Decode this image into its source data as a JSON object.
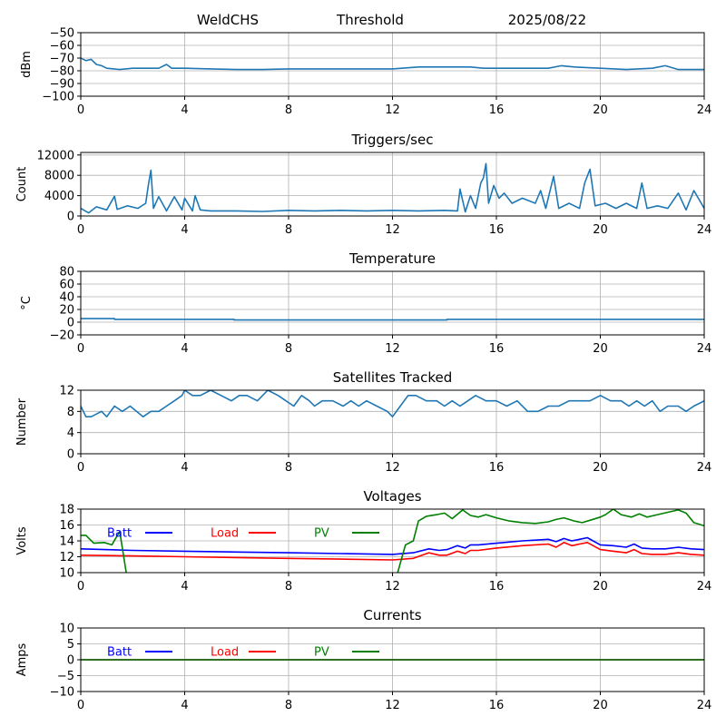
{
  "header": {
    "station": "WeldCHS",
    "mode": "Threshold",
    "date": "2025/08/22"
  },
  "colors": {
    "series": "#1f77b4",
    "batt": "#0000ff",
    "load": "#ff0000",
    "pv": "#008000",
    "grid": "#b0b0b0"
  },
  "legend_labels": {
    "batt": "Batt",
    "load": "Load",
    "pv": "PV"
  },
  "chart_data": [
    {
      "id": "dbm",
      "type": "line",
      "title": "",
      "ylabel": "dBm",
      "xlim": [
        0,
        24
      ],
      "ylim": [
        -100,
        -50
      ],
      "xticks": [
        0,
        4,
        8,
        12,
        16,
        20,
        24
      ],
      "yticks": [
        -100,
        -90,
        -80,
        -70,
        -60,
        -50
      ],
      "grid": true,
      "series": [
        {
          "color": "#1f77b4",
          "x": [
            0,
            0.2,
            0.4,
            0.6,
            0.8,
            1.0,
            1.5,
            2.0,
            2.5,
            3.0,
            3.3,
            3.5,
            4.0,
            5.0,
            6.0,
            7.0,
            8.0,
            10.0,
            12.0,
            13.0,
            14.0,
            15.0,
            15.5,
            16.0,
            17.0,
            18.0,
            18.5,
            19.0,
            20.0,
            21.0,
            22.0,
            22.5,
            23.0,
            24.0
          ],
          "y": [
            -70,
            -72,
            -71,
            -75,
            -76,
            -78,
            -79,
            -78,
            -78,
            -78,
            -75,
            -78,
            -78,
            -78.5,
            -79,
            -79,
            -78.5,
            -78.5,
            -78.5,
            -77,
            -77,
            -77,
            -78,
            -78,
            -78,
            -78,
            -76,
            -77,
            -78,
            -79,
            -78,
            -76,
            -79,
            -79
          ]
        }
      ]
    },
    {
      "id": "triggers",
      "type": "line",
      "title": "Triggers/sec",
      "ylabel": "Count",
      "xlim": [
        0,
        24
      ],
      "ylim": [
        0,
        12500
      ],
      "xticks": [
        0,
        4,
        8,
        12,
        16,
        20,
        24
      ],
      "yticks": [
        0,
        4000,
        8000,
        12000
      ],
      "grid": true,
      "series": [
        {
          "color": "#1f77b4",
          "x": [
            0,
            0.3,
            0.6,
            1.0,
            1.3,
            1.4,
            1.8,
            2.2,
            2.5,
            2.6,
            2.7,
            2.8,
            3.0,
            3.3,
            3.6,
            3.9,
            4.0,
            4.3,
            4.4,
            4.6,
            5.0,
            6.0,
            7.0,
            8.0,
            9.0,
            10.0,
            11.0,
            12.0,
            13.0,
            14.0,
            14.5,
            14.6,
            14.8,
            15.0,
            15.2,
            15.4,
            15.5,
            15.6,
            15.7,
            15.9,
            16.1,
            16.3,
            16.6,
            17.0,
            17.5,
            17.7,
            17.9,
            18.2,
            18.4,
            18.8,
            19.2,
            19.4,
            19.6,
            19.8,
            20.2,
            20.6,
            21.0,
            21.4,
            21.6,
            21.8,
            22.2,
            22.6,
            23.0,
            23.3,
            23.6,
            24.0
          ],
          "y": [
            1500,
            600,
            1800,
            1200,
            3900,
            1300,
            2000,
            1500,
            2500,
            6000,
            9000,
            1500,
            3800,
            1000,
            3800,
            1200,
            3500,
            1000,
            4000,
            1200,
            1000,
            1000,
            900,
            1100,
            1000,
            1100,
            1000,
            1100,
            1000,
            1100,
            1000,
            5300,
            800,
            4000,
            1500,
            6500,
            7500,
            10300,
            2500,
            6000,
            3500,
            4500,
            2500,
            3500,
            2500,
            5000,
            1500,
            7800,
            1500,
            2500,
            1500,
            6500,
            9200,
            2000,
            2500,
            1500,
            2500,
            1500,
            6500,
            1500,
            2000,
            1500,
            4500,
            1200,
            5000,
            1500
          ]
        }
      ]
    },
    {
      "id": "temperature",
      "type": "line",
      "title": "Temperature",
      "ylabel": "°C",
      "xlim": [
        0,
        24
      ],
      "ylim": [
        -20,
        80
      ],
      "xticks": [
        0,
        4,
        8,
        12,
        16,
        20,
        24
      ],
      "yticks": [
        -20,
        0,
        20,
        40,
        60,
        80
      ],
      "grid": true,
      "series": [
        {
          "color": "#1f77b4",
          "x": [
            0,
            1.3,
            1.3,
            5.9,
            5.9,
            14.1,
            14.1,
            24
          ],
          "y": [
            5.5,
            5.5,
            4.5,
            4.5,
            3.5,
            3.5,
            4.5,
            4.5
          ]
        }
      ]
    },
    {
      "id": "satellites",
      "type": "line",
      "title": "Satellites Tracked",
      "ylabel": "Number",
      "xlim": [
        0,
        24
      ],
      "ylim": [
        0,
        12
      ],
      "xticks": [
        0,
        4,
        8,
        12,
        16,
        20,
        24
      ],
      "yticks": [
        0,
        4,
        8,
        12
      ],
      "grid": true,
      "series": [
        {
          "color": "#1f77b4",
          "x": [
            0,
            0.2,
            0.4,
            0.8,
            1.0,
            1.3,
            1.6,
            1.9,
            2.4,
            2.7,
            3.0,
            3.3,
            3.6,
            3.9,
            4.0,
            4.3,
            4.6,
            5.0,
            5.4,
            5.8,
            6.1,
            6.4,
            6.8,
            7.2,
            7.6,
            7.9,
            8.2,
            8.5,
            8.8,
            9.0,
            9.3,
            9.7,
            10.1,
            10.4,
            10.7,
            11.0,
            11.4,
            11.8,
            12.0,
            12.3,
            12.6,
            12.9,
            13.3,
            13.7,
            14.0,
            14.3,
            14.6,
            14.9,
            15.2,
            15.6,
            16.0,
            16.4,
            16.8,
            17.2,
            17.6,
            18.0,
            18.4,
            18.8,
            19.2,
            19.6,
            20.0,
            20.4,
            20.8,
            21.1,
            21.4,
            21.7,
            22.0,
            22.3,
            22.6,
            23.0,
            23.3,
            23.6,
            24.0
          ],
          "y": [
            9,
            7,
            7,
            8,
            7,
            9,
            8,
            9,
            7,
            8,
            8,
            9,
            10,
            11,
            12,
            11,
            11,
            12,
            11,
            10,
            11,
            11,
            10,
            12,
            11,
            10,
            9,
            11,
            10,
            9,
            10,
            10,
            9,
            10,
            9,
            10,
            9,
            8,
            7,
            9,
            11,
            11,
            10,
            10,
            9,
            10,
            9,
            10,
            11,
            10,
            10,
            9,
            10,
            8,
            8,
            9,
            9,
            10,
            10,
            10,
            11,
            10,
            10,
            9,
            10,
            9,
            10,
            8,
            9,
            9,
            8,
            9,
            10
          ]
        }
      ]
    },
    {
      "id": "voltages",
      "type": "line",
      "title": "Voltages",
      "ylabel": "Volts",
      "xlim": [
        0,
        24
      ],
      "ylim": [
        10,
        18
      ],
      "xticks": [
        0,
        4,
        8,
        12,
        16,
        20,
        24
      ],
      "yticks": [
        10,
        12,
        14,
        16,
        18
      ],
      "grid": true,
      "legend": [
        "batt",
        "load",
        "pv"
      ],
      "series": [
        {
          "key": "batt",
          "name": "Batt",
          "color": "#0000ff",
          "x": [
            0,
            2,
            4,
            6,
            8,
            10,
            12,
            12.8,
            13.4,
            13.8,
            14.1,
            14.5,
            14.8,
            15.0,
            15.3,
            16.0,
            17.0,
            18.0,
            18.3,
            18.6,
            18.9,
            19.2,
            19.5,
            20.0,
            20.5,
            21.0,
            21.3,
            21.6,
            22.0,
            22.5,
            23.0,
            23.5,
            24.0
          ],
          "y": [
            13.0,
            12.8,
            12.7,
            12.6,
            12.5,
            12.4,
            12.3,
            12.5,
            13.0,
            12.8,
            12.9,
            13.4,
            13.1,
            13.5,
            13.5,
            13.7,
            14.0,
            14.2,
            13.9,
            14.3,
            14.0,
            14.2,
            14.4,
            13.5,
            13.4,
            13.2,
            13.6,
            13.1,
            13.0,
            13.0,
            13.2,
            13.0,
            12.9
          ]
        },
        {
          "key": "load",
          "name": "Load",
          "color": "#ff0000",
          "x": [
            0,
            2,
            4,
            6,
            8,
            10,
            12,
            12.8,
            13.4,
            13.8,
            14.1,
            14.5,
            14.8,
            15.0,
            15.3,
            16.0,
            17.0,
            18.0,
            18.3,
            18.6,
            18.9,
            19.2,
            19.5,
            20.0,
            20.5,
            21.0,
            21.3,
            21.6,
            22.0,
            22.5,
            23.0,
            23.5,
            24.0
          ],
          "y": [
            12.2,
            12.1,
            12.0,
            11.9,
            11.8,
            11.7,
            11.6,
            11.8,
            12.5,
            12.2,
            12.2,
            12.7,
            12.4,
            12.8,
            12.8,
            13.1,
            13.4,
            13.6,
            13.2,
            13.8,
            13.4,
            13.6,
            13.8,
            12.9,
            12.7,
            12.5,
            12.9,
            12.4,
            12.3,
            12.3,
            12.5,
            12.3,
            12.2
          ]
        },
        {
          "key": "pv",
          "name": "PV",
          "color": "#008000",
          "x": [
            0,
            0.2,
            0.5,
            0.9,
            1.2,
            1.5,
            1.75,
            12.2,
            12.2,
            12.5,
            12.8,
            13.0,
            13.3,
            13.7,
            14.0,
            14.3,
            14.7,
            15.0,
            15.3,
            15.6,
            16.0,
            16.5,
            17.0,
            17.5,
            18.0,
            18.3,
            18.6,
            19.0,
            19.3,
            19.6,
            20.0,
            20.2,
            20.5,
            20.8,
            21.2,
            21.5,
            21.8,
            22.2,
            22.6,
            23.0,
            23.3,
            23.6,
            24.0
          ],
          "y": [
            14.7,
            14.7,
            13.7,
            13.8,
            13.5,
            15.2,
            10.0,
            null,
            10.0,
            13.5,
            14.0,
            16.5,
            17.1,
            17.3,
            17.5,
            16.8,
            17.9,
            17.2,
            17.0,
            17.3,
            16.9,
            16.5,
            16.3,
            16.2,
            16.4,
            16.7,
            16.9,
            16.5,
            16.3,
            16.6,
            17.0,
            17.3,
            18.0,
            17.3,
            17.0,
            17.4,
            17.0,
            17.3,
            17.6,
            17.9,
            17.5,
            16.3,
            15.9
          ]
        }
      ]
    },
    {
      "id": "currents",
      "type": "line",
      "title": "Currents",
      "ylabel": "Amps",
      "xlim": [
        0,
        24
      ],
      "ylim": [
        -10,
        10
      ],
      "xticks": [
        0,
        4,
        8,
        12,
        16,
        20,
        24
      ],
      "yticks": [
        -10,
        -5,
        0,
        5,
        10
      ],
      "grid": true,
      "legend": [
        "batt",
        "load",
        "pv"
      ],
      "series": [
        {
          "key": "batt",
          "name": "Batt",
          "color": "#0000ff",
          "x": [
            0,
            24
          ],
          "y": [
            0,
            0
          ]
        },
        {
          "key": "load",
          "name": "Load",
          "color": "#ff0000",
          "x": [
            0,
            24
          ],
          "y": [
            0,
            0
          ]
        },
        {
          "key": "pv",
          "name": "PV",
          "color": "#008000",
          "x": [
            0,
            24
          ],
          "y": [
            0,
            0
          ]
        }
      ]
    }
  ]
}
